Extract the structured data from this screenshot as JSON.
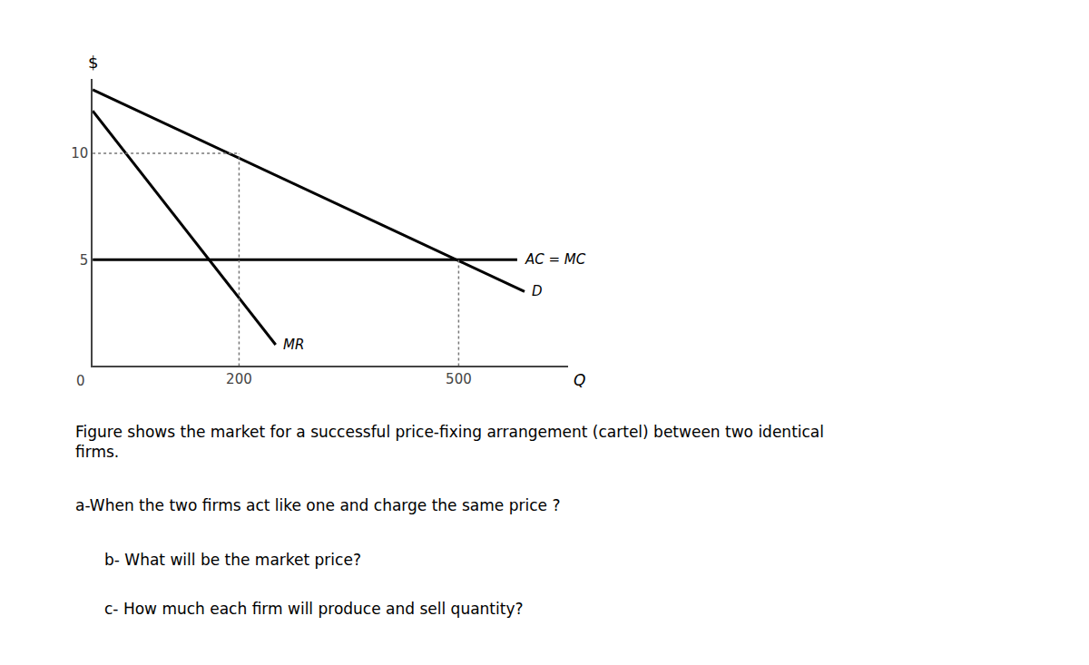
{
  "chart_data": {
    "type": "line",
    "xlabel": "Q",
    "ylabel": "$",
    "xlim": [
      0,
      650
    ],
    "ylim": [
      0,
      13.5
    ],
    "xticks": [
      200,
      500
    ],
    "yticks": [
      5,
      10
    ],
    "grid": false,
    "series": [
      {
        "name": "AC = MC",
        "x": [
          0,
          580
        ],
        "values": [
          5,
          5
        ],
        "color": "#000000",
        "line_style": "solid"
      },
      {
        "name": "D",
        "x": [
          0,
          590
        ],
        "values": [
          13.0,
          3.5
        ],
        "color": "#000000",
        "line_style": "solid"
      },
      {
        "name": "MR",
        "x": [
          0,
          250
        ],
        "values": [
          12.0,
          1.0
        ],
        "color": "#000000",
        "line_style": "solid"
      },
      {
        "x": [
          200,
          200
        ],
        "values": [
          0,
          10
        ],
        "color": "#777777",
        "line_style": "dotted"
      },
      {
        "x": [
          500,
          500
        ],
        "values": [
          0,
          5
        ],
        "color": "#777777",
        "line_style": "dotted"
      },
      {
        "x": [
          0,
          200
        ],
        "values": [
          10,
          10
        ],
        "color": "#777777",
        "line_style": "dotted"
      }
    ],
    "annotations": [
      {
        "text": "0",
        "x": 0,
        "y": 0
      },
      {
        "text": "Figure shows the market for a successful price-fixing arrangement (cartel) between two identical\nfirms."
      },
      {
        "text": "a-When the two firms act like one and charge the same price ?"
      },
      {
        "text": "b- What will be the market price?"
      },
      {
        "text": "c- How much each firm will produce and sell quantity?"
      }
    ]
  }
}
